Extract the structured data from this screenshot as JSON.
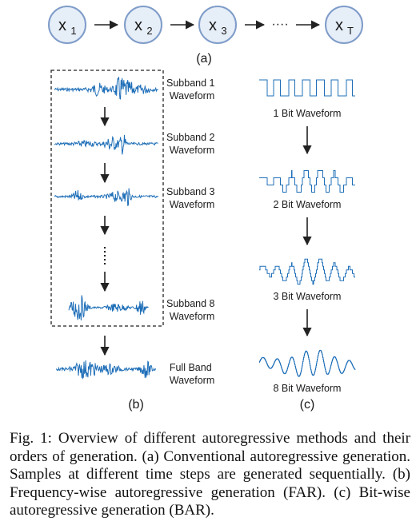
{
  "panel_a": {
    "nodes": [
      {
        "base": "x",
        "sub": "1"
      },
      {
        "base": "x",
        "sub": "2"
      },
      {
        "base": "x",
        "sub": "3"
      },
      {
        "base": "x",
        "sub": "T"
      }
    ],
    "ellipsis": "····",
    "label": "(a)"
  },
  "panel_b": {
    "subband_1": [
      "Subband 1",
      "Waveform"
    ],
    "subband_2": [
      "Subband 2",
      "Waveform"
    ],
    "subband_3": [
      "Subband 3",
      "Waveform"
    ],
    "subband_8": [
      "Subband 8",
      "Waveform"
    ],
    "full_band": [
      "Full Band",
      "Waveform"
    ],
    "label": "(b)"
  },
  "panel_c": {
    "wave_1bit": "1 Bit Waveform",
    "wave_2bit": "2 Bit Waveform",
    "wave_3bit": "3 Bit Waveform",
    "wave_8bit": "8 Bit Waveform",
    "label": "(c)"
  },
  "colors": {
    "node_fill": "#e6eef8",
    "node_stroke": "#7f9cc9",
    "waveform": "#1f6fb8",
    "arrow": "#222222"
  },
  "caption": "Fig. 1: Overview of different autoregressive methods and their orders of generation. (a) Conventional autoregressive generation. Samples at different time steps are generated sequentially. (b) Frequency-wise autoregressive generation (FAR). (c) Bit-wise autoregressive generation (BAR)."
}
